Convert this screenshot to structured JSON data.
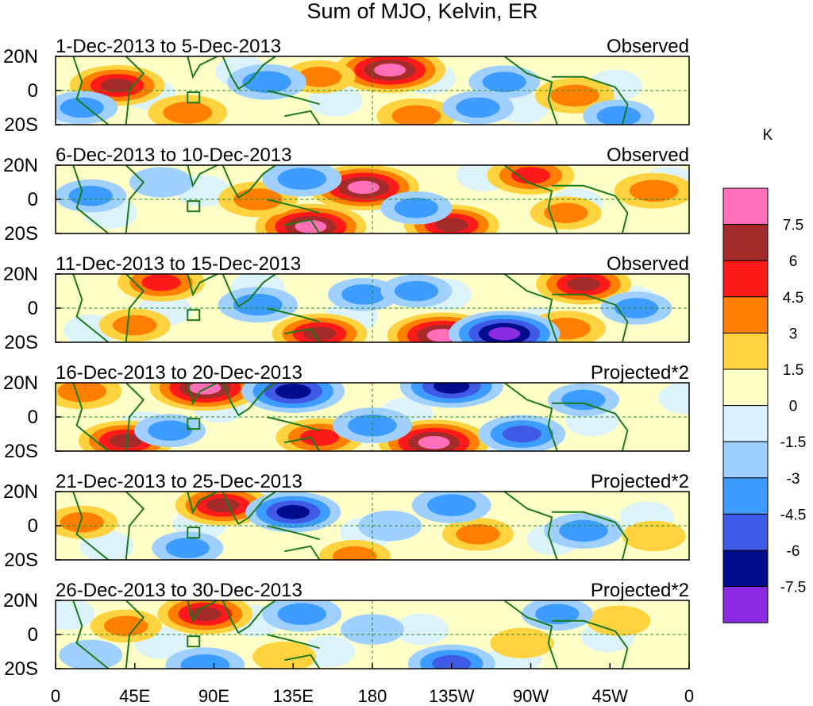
{
  "chart_data": {
    "type": "heatmap",
    "title": "Sum of MJO, Kelvin, ER",
    "x_ticks": [
      "0",
      "45E",
      "90E",
      "135E",
      "180",
      "135W",
      "90W",
      "45W",
      "0"
    ],
    "y_ticks": [
      "20N",
      "0",
      "20S"
    ],
    "lon_range": [
      0,
      360
    ],
    "lat_range": [
      -20,
      20
    ],
    "colorbar": {
      "unit": "K",
      "levels": [
        "7.5",
        "6",
        "4.5",
        "3",
        "1.5",
        "0",
        "-1.5",
        "-3",
        "-4.5",
        "-6",
        "-7.5"
      ],
      "colors": [
        "#ff6fb7",
        "#a52a2a",
        "#ff1a1a",
        "#ff7f00",
        "#ffd23f",
        "#ffffc8",
        "#d9f2ff",
        "#9fd0ff",
        "#3c9cff",
        "#3e5ae6",
        "#000c8c",
        "#8a2be2"
      ]
    },
    "panels": [
      {
        "date_range": "1-Dec-2013 to 5-Dec-2013",
        "label": "Observed",
        "anomalies": [
          {
            "lon": 35,
            "lat": 3,
            "value": 6
          },
          {
            "lon": 190,
            "lat": 12,
            "value": 8
          },
          {
            "lon": 150,
            "lat": 8,
            "value": 3
          },
          {
            "lon": 75,
            "lat": -13,
            "value": 4
          },
          {
            "lon": 205,
            "lat": -15,
            "value": 4
          },
          {
            "lon": 295,
            "lat": -3,
            "value": 4
          },
          {
            "lon": 120,
            "lat": 5,
            "value": -4
          },
          {
            "lon": 255,
            "lat": 5,
            "value": -3
          },
          {
            "lon": 240,
            "lat": -10,
            "value": -3
          },
          {
            "lon": 15,
            "lat": -10,
            "value": -3
          },
          {
            "lon": 320,
            "lat": -15,
            "value": -3
          }
        ]
      },
      {
        "date_range": "6-Dec-2013 to 10-Dec-2013",
        "label": "Observed",
        "anomalies": [
          {
            "lon": 175,
            "lat": 7,
            "value": 8
          },
          {
            "lon": 145,
            "lat": -16,
            "value": 8
          },
          {
            "lon": 115,
            "lat": 0,
            "value": 4
          },
          {
            "lon": 225,
            "lat": -15,
            "value": 6
          },
          {
            "lon": 270,
            "lat": 14,
            "value": 5
          },
          {
            "lon": 340,
            "lat": 5,
            "value": 4
          },
          {
            "lon": 290,
            "lat": -8,
            "value": 3
          },
          {
            "lon": 140,
            "lat": 12,
            "value": -4
          },
          {
            "lon": 205,
            "lat": -5,
            "value": -3
          },
          {
            "lon": 20,
            "lat": 2,
            "value": -3
          },
          {
            "lon": 60,
            "lat": 10,
            "value": -2
          }
        ]
      },
      {
        "date_range": "11-Dec-2013 to 15-Dec-2013",
        "label": "Observed",
        "anomalies": [
          {
            "lon": 60,
            "lat": 15,
            "value": 5
          },
          {
            "lon": 150,
            "lat": -15,
            "value": 6
          },
          {
            "lon": 220,
            "lat": -16,
            "value": 8
          },
          {
            "lon": 300,
            "lat": 14,
            "value": 6
          },
          {
            "lon": 290,
            "lat": -12,
            "value": 4
          },
          {
            "lon": 45,
            "lat": -10,
            "value": 3
          },
          {
            "lon": 255,
            "lat": -15,
            "value": -8
          },
          {
            "lon": 115,
            "lat": 2,
            "value": -4
          },
          {
            "lon": 175,
            "lat": 8,
            "value": -3
          },
          {
            "lon": 205,
            "lat": 10,
            "value": -3
          },
          {
            "lon": 330,
            "lat": 0,
            "value": -3
          }
        ]
      },
      {
        "date_range": "16-Dec-2013 to 20-Dec-2013",
        "label": "Projected*2",
        "anomalies": [
          {
            "lon": 85,
            "lat": 17,
            "value": 8
          },
          {
            "lon": 40,
            "lat": -14,
            "value": 6
          },
          {
            "lon": 150,
            "lat": -12,
            "value": 5
          },
          {
            "lon": 215,
            "lat": -15,
            "value": 8
          },
          {
            "lon": 15,
            "lat": 15,
            "value": 4
          },
          {
            "lon": 135,
            "lat": 15,
            "value": -7
          },
          {
            "lon": 225,
            "lat": 18,
            "value": -7
          },
          {
            "lon": 265,
            "lat": -10,
            "value": -5
          },
          {
            "lon": 180,
            "lat": -5,
            "value": -4
          },
          {
            "lon": 65,
            "lat": -8,
            "value": -3
          },
          {
            "lon": 300,
            "lat": 10,
            "value": -3
          }
        ]
      },
      {
        "date_range": "21-Dec-2013 to 25-Dec-2013",
        "label": "Projected*2",
        "anomalies": [
          {
            "lon": 95,
            "lat": 12,
            "value": 6
          },
          {
            "lon": 15,
            "lat": 2,
            "value": 3
          },
          {
            "lon": 170,
            "lat": -18,
            "value": 3
          },
          {
            "lon": 240,
            "lat": -5,
            "value": 3
          },
          {
            "lon": 340,
            "lat": -6,
            "value": 2
          },
          {
            "lon": 135,
            "lat": 8,
            "value": -6
          },
          {
            "lon": 225,
            "lat": 12,
            "value": -4
          },
          {
            "lon": 300,
            "lat": -3,
            "value": -4
          },
          {
            "lon": 75,
            "lat": -13,
            "value": -3
          },
          {
            "lon": 190,
            "lat": 0,
            "value": -2
          }
        ]
      },
      {
        "date_range": "26-Dec-2013 to 30-Dec-2013",
        "label": "Projected*2",
        "anomalies": [
          {
            "lon": 85,
            "lat": 12,
            "value": 6
          },
          {
            "lon": 40,
            "lat": 5,
            "value": 3
          },
          {
            "lon": 265,
            "lat": -5,
            "value": 2
          },
          {
            "lon": 130,
            "lat": -13,
            "value": 2
          },
          {
            "lon": 320,
            "lat": 8,
            "value": 2
          },
          {
            "lon": 140,
            "lat": 12,
            "value": -4
          },
          {
            "lon": 225,
            "lat": -17,
            "value": -5
          },
          {
            "lon": 85,
            "lat": -18,
            "value": -4
          },
          {
            "lon": 285,
            "lat": 12,
            "value": -3
          },
          {
            "lon": 180,
            "lat": 3,
            "value": -2
          },
          {
            "lon": 20,
            "lat": -12,
            "value": -2
          }
        ]
      }
    ]
  }
}
